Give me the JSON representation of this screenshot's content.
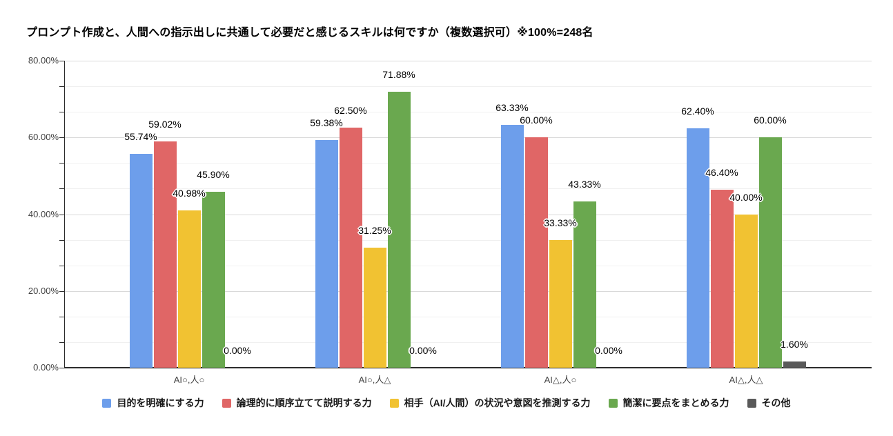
{
  "chart_data": {
    "type": "bar",
    "title": "プロンプト作成と、人間への指示出しに共通して必要だと感じるスキルは何ですか（複数選択可）※100%=248名",
    "categories": [
      "AI○,人○",
      "AI○,人△",
      "AI△,人○",
      "AI△,人△"
    ],
    "series": [
      {
        "name": "目的を明確にする力",
        "color": "#6D9EEB",
        "values": [
          55.74,
          59.38,
          63.33,
          62.4
        ],
        "labels": [
          "55.74%",
          "59.38%",
          "63.33%",
          "62.40%"
        ]
      },
      {
        "name": "論理的に順序立てて説明する力",
        "color": "#E06666",
        "values": [
          59.02,
          62.5,
          60.0,
          46.4
        ],
        "labels": [
          "59.02%",
          "62.50%",
          "60.00%",
          "46.40%"
        ]
      },
      {
        "name": "相手（AI/人間）の状況や意図を推測する力",
        "color": "#F1C232",
        "values": [
          40.98,
          31.25,
          33.33,
          40.0
        ],
        "labels": [
          "40.98%",
          "31.25%",
          "33.33%",
          "40.00%"
        ]
      },
      {
        "name": "簡潔に要点をまとめる力",
        "color": "#6AA84F",
        "values": [
          45.9,
          71.88,
          43.33,
          60.0
        ],
        "labels": [
          "45.90%",
          "71.88%",
          "43.33%",
          "60.00%"
        ]
      },
      {
        "name": "その他",
        "color": "#595959",
        "values": [
          0.0,
          0.0,
          0.0,
          1.6
        ],
        "labels": [
          "0.00%",
          "0.00%",
          "0.00%",
          "1.60%"
        ]
      }
    ],
    "y_ticks": [
      "0.00%",
      "20.00%",
      "40.00%",
      "60.00%",
      "80.00%"
    ],
    "ylim": [
      0,
      80
    ],
    "grid": true,
    "legend_position": "bottom"
  }
}
